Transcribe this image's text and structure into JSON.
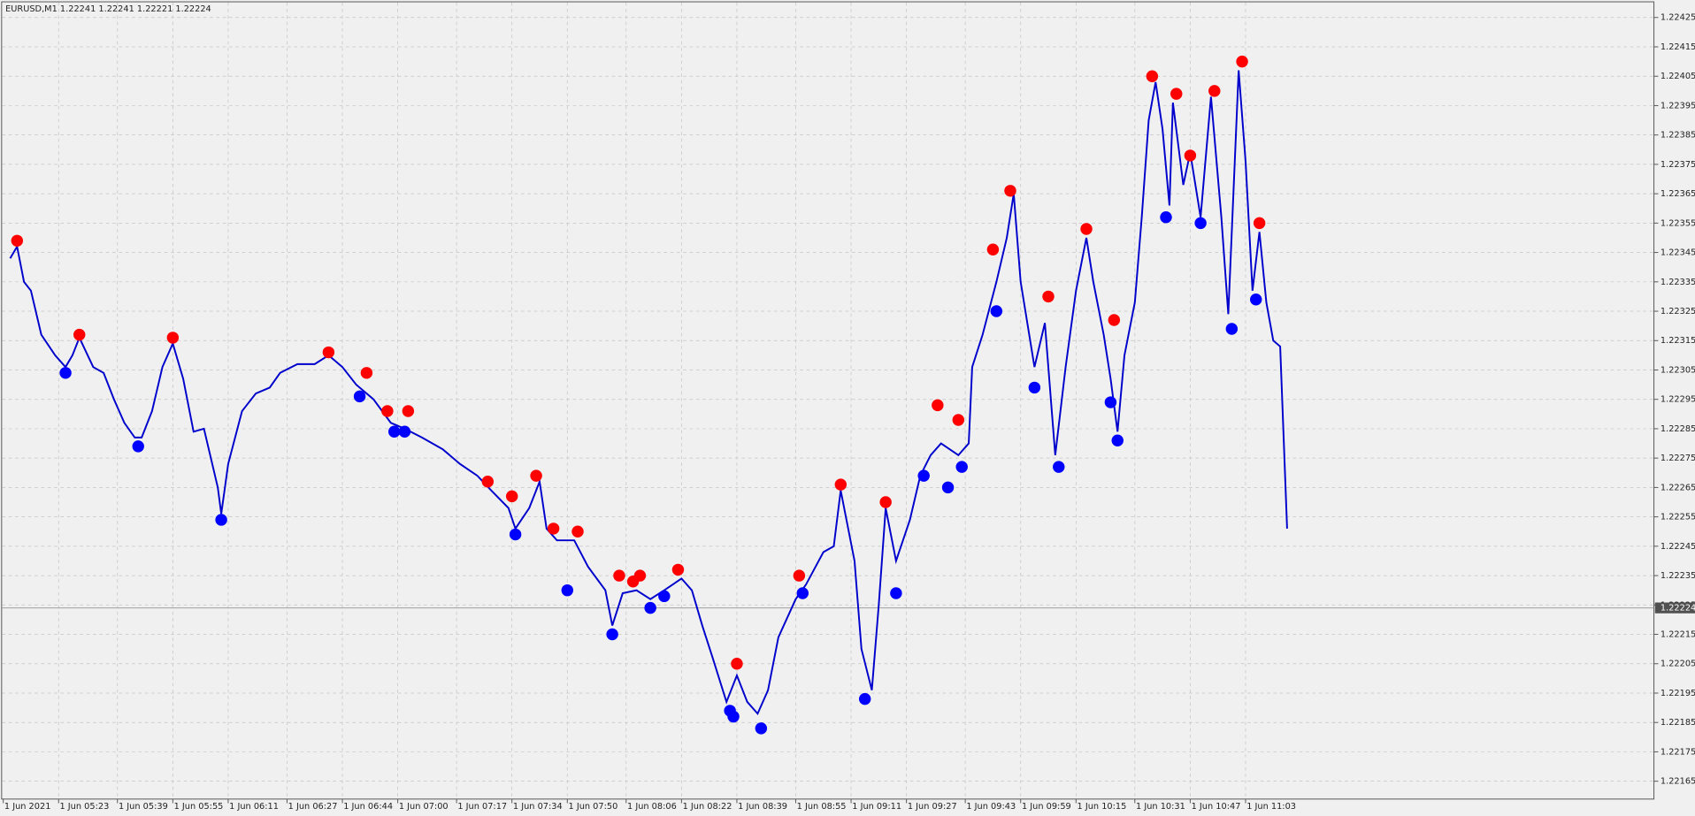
{
  "chart_data": {
    "type": "line",
    "title": "EURUSD,M1  1.22241 1.22241 1.22221 1.22224",
    "xlim": [
      0,
      477
    ],
    "xticks": [
      {
        "value": 0,
        "label": "1 Jun 2021"
      },
      {
        "value": 16,
        "label": "1 Jun 05:23"
      },
      {
        "value": 33,
        "label": "1 Jun 05:39"
      },
      {
        "value": 49,
        "label": "1 Jun 05:55"
      },
      {
        "value": 65,
        "label": "1 Jun 06:11"
      },
      {
        "value": 82,
        "label": "1 Jun 06:27"
      },
      {
        "value": 98,
        "label": "1 Jun 06:44"
      },
      {
        "value": 114,
        "label": "1 Jun 07:00"
      },
      {
        "value": 131,
        "label": "1 Jun 07:17"
      },
      {
        "value": 147,
        "label": "1 Jun 07:34"
      },
      {
        "value": 163,
        "label": "1 Jun 07:50"
      },
      {
        "value": 180,
        "label": "1 Jun 08:06"
      },
      {
        "value": 196,
        "label": "1 Jun 08:22"
      },
      {
        "value": 212,
        "label": "1 Jun 08:39"
      },
      {
        "value": 229,
        "label": "1 Jun 08:55"
      },
      {
        "value": 245,
        "label": "1 Jun 09:11"
      },
      {
        "value": 261,
        "label": "1 Jun 09:27"
      },
      {
        "value": 278,
        "label": "1 Jun 09:43"
      },
      {
        "value": 294,
        "label": "1 Jun 09:59"
      },
      {
        "value": 310,
        "label": "1 Jun 10:15"
      },
      {
        "value": 327,
        "label": "1 Jun 10:31"
      },
      {
        "value": 343,
        "label": "1 Jun 10:47"
      },
      {
        "value": 359,
        "label": "1 Jun 11:03"
      }
    ],
    "ylim": [
      1.22159,
      1.2243
    ],
    "yticks": [
      1.22165,
      1.22175,
      1.22185,
      1.22195,
      1.22205,
      1.22215,
      1.22225,
      1.22235,
      1.22245,
      1.22255,
      1.22265,
      1.22275,
      1.22285,
      1.22295,
      1.22305,
      1.22315,
      1.22325,
      1.22335,
      1.22345,
      1.22355,
      1.22365,
      1.22375,
      1.22385,
      1.22395,
      1.22405,
      1.22415,
      1.22425
    ],
    "grid": true,
    "last_price": 1.22224,
    "series": [
      {
        "type": "line",
        "color": "#0000cc",
        "x": [
          2,
          4,
          6,
          8,
          11,
          15,
          18,
          20,
          22,
          26,
          29,
          32,
          35,
          38,
          40,
          43,
          46,
          49,
          52,
          55,
          58,
          62,
          63,
          65,
          69,
          73,
          77,
          80,
          85,
          90,
          94,
          98,
          102,
          107,
          112,
          116,
          121,
          127,
          132,
          137,
          141,
          146,
          148,
          152,
          155,
          157,
          160,
          165,
          169,
          174,
          176,
          179,
          183,
          187,
          191,
          196,
          199,
          202,
          205,
          209,
          212,
          215,
          218,
          221,
          224,
          229,
          232,
          237,
          240,
          242,
          246,
          248,
          251,
          253,
          255,
          258,
          262,
          265,
          268,
          271,
          276,
          279,
          280,
          283,
          287,
          290,
          292,
          294,
          298,
          301,
          304,
          307,
          310,
          313,
          315,
          318,
          320,
          322,
          324,
          327,
          329,
          331,
          333,
          335,
          337,
          338,
          341,
          343,
          346,
          349,
          352,
          354,
          357,
          359,
          361,
          363,
          365,
          367,
          369,
          371
        ],
        "values": [
          1.22343,
          1.22347,
          1.22335,
          1.22332,
          1.22317,
          1.2231,
          1.22306,
          1.2231,
          1.22316,
          1.22306,
          1.22304,
          1.22295,
          1.22287,
          1.22282,
          1.22282,
          1.22291,
          1.22306,
          1.22314,
          1.22302,
          1.22284,
          1.22285,
          1.22265,
          1.22256,
          1.22273,
          1.22291,
          1.22297,
          1.22299,
          1.22304,
          1.22307,
          1.22307,
          1.2231,
          1.22306,
          1.223,
          1.22295,
          1.22287,
          1.22285,
          1.22282,
          1.22278,
          1.22273,
          1.22269,
          1.22264,
          1.22258,
          1.22251,
          1.22258,
          1.22267,
          1.22251,
          1.22247,
          1.22247,
          1.22238,
          1.2223,
          1.22218,
          1.22229,
          1.2223,
          1.22227,
          1.2223,
          1.22234,
          1.2223,
          1.22218,
          1.22207,
          1.22192,
          1.22201,
          1.22192,
          1.22188,
          1.22196,
          1.22214,
          1.22227,
          1.22232,
          1.22243,
          1.22245,
          1.22264,
          1.2224,
          1.2221,
          1.22196,
          1.22225,
          1.22258,
          1.2224,
          1.22254,
          1.22269,
          1.22276,
          1.2228,
          1.22276,
          1.2228,
          1.22306,
          1.22317,
          1.22335,
          1.2235,
          1.22365,
          1.22335,
          1.22306,
          1.22321,
          1.22276,
          1.22306,
          1.22332,
          1.2235,
          1.22335,
          1.22317,
          1.22302,
          1.22284,
          1.2231,
          1.22328,
          1.22357,
          1.2239,
          1.22403,
          1.22387,
          1.22361,
          1.22396,
          1.22368,
          1.22379,
          1.22357,
          1.22398,
          1.22357,
          1.22324,
          1.22407,
          1.22376,
          1.22332,
          1.22352,
          1.22328,
          1.22315,
          1.22313,
          1.22251
        ]
      },
      {
        "type": "scatter",
        "color": "#ff0000",
        "x": [
          4,
          22,
          49,
          94,
          105,
          111,
          117,
          140,
          147,
          154,
          159,
          166,
          178,
          182,
          184,
          195,
          212,
          230,
          242,
          255,
          270,
          276,
          286,
          291,
          302,
          313,
          321,
          332,
          339,
          343,
          350,
          358,
          363
        ],
        "values": [
          1.22349,
          1.22317,
          1.22316,
          1.22311,
          1.22304,
          1.22291,
          1.22291,
          1.22267,
          1.22262,
          1.22269,
          1.22251,
          1.2225,
          1.22235,
          1.22233,
          1.22235,
          1.22237,
          1.22205,
          1.22235,
          1.22266,
          1.2226,
          1.22293,
          1.22288,
          1.22346,
          1.22366,
          1.2233,
          1.22353,
          1.22322,
          1.22405,
          1.22399,
          1.22378,
          1.224,
          1.2241,
          1.22355
        ]
      },
      {
        "type": "scatter",
        "color": "#0000ff",
        "x": [
          18,
          39,
          63,
          103,
          113,
          116,
          148,
          163,
          176,
          187,
          191,
          210,
          211,
          219,
          231,
          249,
          258,
          266,
          273,
          277,
          287,
          298,
          305,
          320,
          322,
          336,
          346,
          355,
          362
        ],
        "values": [
          1.22304,
          1.22279,
          1.22254,
          1.22296,
          1.22284,
          1.22284,
          1.22249,
          1.2223,
          1.22215,
          1.22224,
          1.22228,
          1.22189,
          1.22187,
          1.22183,
          1.22229,
          1.22193,
          1.22229,
          1.22269,
          1.22265,
          1.22272,
          1.22325,
          1.22299,
          1.22272,
          1.22294,
          1.22281,
          1.22357,
          1.22355,
          1.22319,
          1.22329
        ]
      }
    ]
  }
}
